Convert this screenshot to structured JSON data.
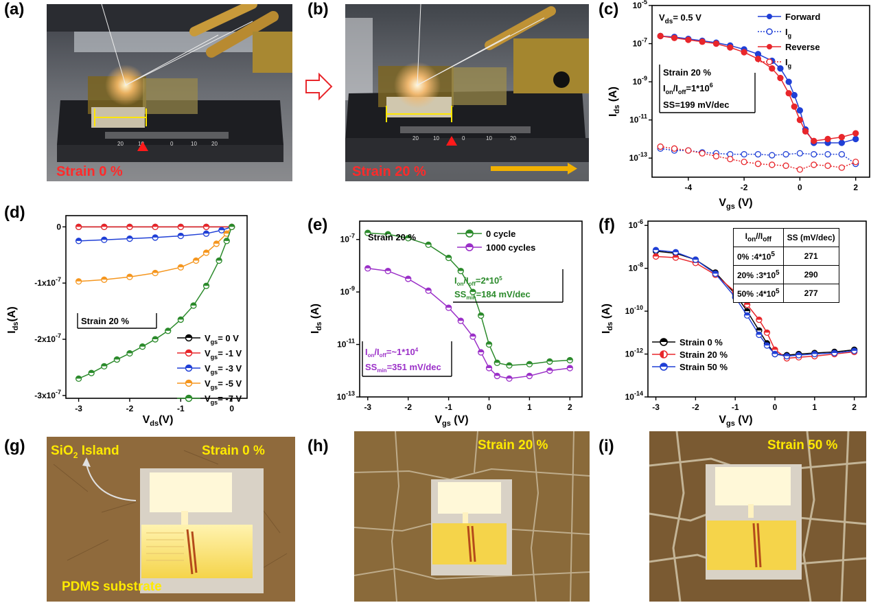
{
  "labels": {
    "a": "(a)",
    "b": "(b)",
    "c": "(c)",
    "d": "(d)",
    "e": "(e)",
    "f": "(f)",
    "g": "(g)",
    "h": "(h)",
    "i": "(i)"
  },
  "photos": {
    "a": {
      "strain_text": "Strain 0 %",
      "ruler": [
        "20",
        "10",
        "0",
        "10",
        "20"
      ]
    },
    "b": {
      "strain_text": "Strain 20 %",
      "ruler": [
        "20",
        "10",
        "0",
        "10",
        "20"
      ]
    },
    "g": {
      "strain_text": "Strain 0 %",
      "island_text": "SiO",
      "island_sub": "2",
      "island_rest": " Island",
      "substrate_text": "PDMS substrate"
    },
    "h": {
      "strain_text": "Strain 20 %"
    },
    "i": {
      "strain_text": "Strain 50 %"
    }
  },
  "colors": {
    "red": "#e8262b",
    "blue": "#1f3fd6",
    "black": "#000000",
    "orange": "#f5961e",
    "green": "#2b8a2b",
    "purple": "#9b30c8",
    "yellow": "#ffe600"
  },
  "chart_data": [
    {
      "id": "c",
      "type": "scatter",
      "xlabel": "V",
      "xlabel_sub": "gs",
      "xlabel_unit": " (V)",
      "ylabel": "I",
      "ylabel_sub": "ds",
      "ylabel_unit": " (A)",
      "xlim": [
        -5.3,
        2.5
      ],
      "xticks": [
        -4,
        -2,
        0,
        2
      ],
      "ylog": true,
      "ylim_exp": [
        -14,
        -5
      ],
      "yticks": [
        {
          "base": "10",
          "exp": "-5"
        },
        {
          "base": "10",
          "exp": "-7"
        },
        {
          "base": "10",
          "exp": "-9"
        },
        {
          "base": "10",
          "exp": "-11"
        },
        {
          "base": "10",
          "exp": "-13"
        }
      ],
      "ytick_exps": [
        -5,
        -7,
        -9,
        -11,
        -13
      ],
      "annotation_top": {
        "main": "V",
        "sub": "ds",
        "rest": "= 0.5 V"
      },
      "box_lines": [
        "Strain 20 %",
        "I_on/I_off=1*10^6",
        "SS=199 mV/dec"
      ],
      "box_line1": "Strain 20 %",
      "box_line2a": "I",
      "box_line2b": "on",
      "box_line2c": "/I",
      "box_line2d": "off",
      "box_line2e": "=1*10",
      "box_line2f": "6",
      "box_line3": "SS=199 mV/dec",
      "legend": [
        {
          "name": "Forward",
          "sub": ""
        },
        {
          "name": "I",
          "sub": "g"
        },
        {
          "name": "Reverse",
          "sub": ""
        },
        {
          "name": "I",
          "sub": "g"
        }
      ],
      "series": [
        {
          "name": "Forward",
          "color": "blue",
          "style": "solid",
          "x": [
            -5,
            -4.5,
            -4,
            -3.5,
            -3,
            -2.5,
            -2,
            -1.5,
            -1,
            -0.7,
            -0.4,
            -0.2,
            0,
            0.2,
            0.5,
            1,
            1.5,
            2
          ],
          "y_exp": [
            -6.6,
            -6.65,
            -6.75,
            -6.85,
            -6.95,
            -7.1,
            -7.3,
            -7.55,
            -7.9,
            -8.3,
            -9.0,
            -9.7,
            -10.5,
            -11.5,
            -12.2,
            -12.2,
            -12.2,
            -12.0
          ]
        },
        {
          "name": "I_g forward",
          "color": "blue",
          "style": "dotted",
          "x": [
            -5,
            -4.5,
            -4,
            -3.5,
            -3,
            -2.5,
            -2,
            -1.5,
            -1,
            -0.5,
            0,
            0.5,
            1,
            1.5,
            2
          ],
          "y_exp": [
            -12.5,
            -12.6,
            -12.6,
            -12.7,
            -12.75,
            -12.8,
            -12.8,
            -12.8,
            -12.85,
            -12.8,
            -12.75,
            -12.8,
            -12.8,
            -12.8,
            -13.3
          ]
        },
        {
          "name": "Reverse",
          "color": "red",
          "style": "solid",
          "x": [
            -5,
            -4.5,
            -4,
            -3.5,
            -3,
            -2.5,
            -2,
            -1.5,
            -1,
            -0.7,
            -0.4,
            -0.2,
            0,
            0.2,
            0.5,
            1,
            1.5,
            2
          ],
          "y_exp": [
            -6.6,
            -6.7,
            -6.8,
            -6.9,
            -7.0,
            -7.2,
            -7.45,
            -7.8,
            -8.3,
            -8.8,
            -9.6,
            -10.3,
            -11.0,
            -11.6,
            -12.1,
            -12.0,
            -11.9,
            -11.7
          ]
        },
        {
          "name": "I_g reverse",
          "color": "red",
          "style": "dotted",
          "x": [
            -5,
            -4.5,
            -4,
            -3.5,
            -3,
            -2.5,
            -2,
            -1.5,
            -1,
            -0.5,
            0,
            0.5,
            1,
            1.5,
            2
          ],
          "y_exp": [
            -12.4,
            -12.5,
            -12.6,
            -12.75,
            -12.9,
            -13.05,
            -13.2,
            -13.3,
            -13.35,
            -13.4,
            -13.6,
            -13.35,
            -13.4,
            -13.5,
            -13.2
          ]
        }
      ]
    },
    {
      "id": "d",
      "type": "line",
      "xlabel": "V",
      "xlabel_sub": "ds",
      "xlabel_unit": "(V)",
      "ylabel": "I",
      "ylabel_sub": "ds",
      "ylabel_unit": "(A)",
      "xlim": [
        -3.25,
        0.3
      ],
      "xticks": [
        -3,
        -2,
        -1,
        0
      ],
      "ylim": [
        -3.05e-07,
        2e-08
      ],
      "yticks": [
        {
          "value": 0,
          "label": "0"
        },
        {
          "value": -1e-07,
          "label": "-1x10",
          "exp": "-7"
        },
        {
          "value": -2e-07,
          "label": "-2x10",
          "exp": "-7"
        },
        {
          "value": -3e-07,
          "label": "-3x10",
          "exp": "-7"
        }
      ],
      "box_text": "Strain 20 %",
      "legend": [
        {
          "name": "V",
          "sub": "gs",
          "rest": "= 0 V"
        },
        {
          "name": "V",
          "sub": "gs",
          "rest": "= -1 V"
        },
        {
          "name": "V",
          "sub": "gs",
          "rest": "= -3 V"
        },
        {
          "name": "V",
          "sub": "gs",
          "rest": "= -5 V"
        },
        {
          "name": "V",
          "sub": "gs",
          "rest": "= -7 V"
        }
      ],
      "series": [
        {
          "name": "Vgs = 0 V",
          "color": "black",
          "x": [
            -3,
            -2.5,
            -2,
            -1.5,
            -1,
            -0.5,
            0
          ],
          "y": [
            0,
            0,
            0,
            0,
            0,
            0,
            0
          ]
        },
        {
          "name": "Vgs = -1 V",
          "color": "red",
          "x": [
            -3,
            -2.5,
            -2,
            -1.5,
            -1,
            -0.5,
            0
          ],
          "y": [
            0,
            0,
            0,
            0,
            0,
            0,
            0
          ]
        },
        {
          "name": "Vgs = -3 V",
          "color": "blue",
          "x": [
            -3,
            -2.5,
            -2,
            -1.5,
            -1,
            -0.5,
            -0.2,
            0
          ],
          "y": [
            -2.5e-08,
            -2.3e-08,
            -2.1e-08,
            -1.9e-08,
            -1.6e-08,
            -1.2e-08,
            -6e-09,
            0
          ]
        },
        {
          "name": "Vgs = -5 V",
          "color": "orange",
          "x": [
            -3,
            -2.5,
            -2,
            -1.5,
            -1,
            -0.7,
            -0.5,
            -0.3,
            -0.1,
            0
          ],
          "y": [
            -9.7e-08,
            -9.4e-08,
            -8.9e-08,
            -8.2e-08,
            -7.2e-08,
            -6e-08,
            -4.6e-08,
            -3e-08,
            -1.2e-08,
            0
          ]
        },
        {
          "name": "Vgs = -7 V",
          "color": "green",
          "x": [
            -3,
            -2.75,
            -2.5,
            -2.25,
            -2,
            -1.75,
            -1.5,
            -1.25,
            -1,
            -0.75,
            -0.5,
            -0.25,
            -0.1,
            0
          ],
          "y": [
            -2.7e-07,
            -2.6e-07,
            -2.48e-07,
            -2.36e-07,
            -2.25e-07,
            -2.13e-07,
            -2e-07,
            -1.85e-07,
            -1.65e-07,
            -1.4e-07,
            -1.05e-07,
            -6e-08,
            -2.5e-08,
            0
          ]
        }
      ]
    },
    {
      "id": "e",
      "type": "scatter",
      "xlabel": "V",
      "xlabel_sub": "gs",
      "xlabel_unit": " (V)",
      "ylabel": "I",
      "ylabel_sub": "ds",
      "ylabel_unit": " (A)",
      "xlim": [
        -3.2,
        2.3
      ],
      "xticks": [
        -3,
        -2,
        -1,
        0,
        1,
        2
      ],
      "ylog": true,
      "ylim_exp": [
        -13,
        -6.3
      ],
      "yticks": [
        {
          "base": "10",
          "exp": "-7"
        },
        {
          "base": "10",
          "exp": "-9"
        },
        {
          "base": "10",
          "exp": "-11"
        },
        {
          "base": "10",
          "exp": "-13"
        }
      ],
      "ytick_exps": [
        -7,
        -9,
        -11,
        -13
      ],
      "title": "Strain 20 %",
      "box1": {
        "a": "I",
        "b": "on",
        "c": "/I",
        "d": "off",
        "e": "=2*10",
        "f": "5",
        "g": "SS",
        "h": "min",
        "i": "=184 mV/dec"
      },
      "box2": {
        "a": "I",
        "b": "on",
        "c": "/I",
        "d": "off",
        "e": "=~1*10",
        "f": "4",
        "g": "SS",
        "h": "min",
        "i": "=351 mV/dec"
      },
      "legend": [
        {
          "name": "0 cycle"
        },
        {
          "name": "1000 cycles"
        }
      ],
      "series": [
        {
          "name": "0 cycle",
          "color": "green",
          "x": [
            -3,
            -2.5,
            -2,
            -1.5,
            -1,
            -0.7,
            -0.4,
            -0.2,
            0,
            0.2,
            0.5,
            1,
            1.5,
            2
          ],
          "y_exp": [
            -6.75,
            -6.8,
            -6.95,
            -7.2,
            -7.7,
            -8.2,
            -9.0,
            -9.9,
            -11.0,
            -11.7,
            -11.8,
            -11.75,
            -11.65,
            -11.6
          ]
        },
        {
          "name": "1000 cycles",
          "color": "purple",
          "x": [
            -3,
            -2.5,
            -2,
            -1.5,
            -1,
            -0.7,
            -0.4,
            -0.2,
            0,
            0.2,
            0.5,
            1,
            1.5,
            2
          ],
          "y_exp": [
            -8.1,
            -8.2,
            -8.5,
            -8.95,
            -9.6,
            -10.1,
            -10.7,
            -11.3,
            -11.9,
            -12.2,
            -12.3,
            -12.2,
            -12.0,
            -11.9
          ]
        }
      ]
    },
    {
      "id": "f",
      "type": "scatter",
      "xlabel": "V",
      "xlabel_sub": "gs",
      "xlabel_unit": " (V)",
      "ylabel": "I",
      "ylabel_sub": "ds",
      "ylabel_unit": " (A)",
      "xlim": [
        -3.2,
        2.3
      ],
      "xticks": [
        -3,
        -2,
        -1,
        0,
        1,
        2
      ],
      "ylog": true,
      "ylim_exp": [
        -14,
        -5.8
      ],
      "yticks": [
        {
          "base": "10",
          "exp": "-6"
        },
        {
          "base": "10",
          "exp": "-8"
        },
        {
          "base": "10",
          "exp": "-10"
        },
        {
          "base": "10",
          "exp": "-12"
        },
        {
          "base": "10",
          "exp": "-14"
        }
      ],
      "ytick_exps": [
        -6,
        -8,
        -10,
        -12,
        -14
      ],
      "table": {
        "h1a": "I",
        "h1b": "on",
        "h1c": "/I",
        "h1d": "off",
        "h2": "SS (mV/dec)",
        "rows": [
          {
            "a": "0% :4*10",
            "b": "5",
            "ss": "271"
          },
          {
            "a": "20% :3*10",
            "b": "5",
            "ss": "290"
          },
          {
            "a": "50% :4*10",
            "b": "5",
            "ss": "277"
          }
        ]
      },
      "legend": [
        {
          "name": "Strain 0 %"
        },
        {
          "name": "Strain 20 %"
        },
        {
          "name": "Strain 50 %"
        }
      ],
      "series": [
        {
          "name": "Strain 0 %",
          "color": "black",
          "x": [
            -3,
            -2.5,
            -2,
            -1.5,
            -1,
            -0.7,
            -0.4,
            -0.2,
            0,
            0.3,
            0.6,
            1,
            1.5,
            2
          ],
          "y_exp": [
            -7.2,
            -7.3,
            -7.6,
            -8.2,
            -9.2,
            -10.0,
            -10.9,
            -11.5,
            -12.0,
            -12.05,
            -12.0,
            -11.95,
            -11.9,
            -11.8
          ]
        },
        {
          "name": "Strain 20 %",
          "color": "red",
          "x": [
            -3,
            -2.5,
            -2,
            -1.5,
            -1,
            -0.7,
            -0.4,
            -0.2,
            0,
            0.3,
            0.6,
            1,
            1.5,
            2
          ],
          "y_exp": [
            -7.45,
            -7.5,
            -7.75,
            -8.3,
            -9.1,
            -9.7,
            -10.4,
            -11.0,
            -11.8,
            -12.2,
            -12.15,
            -12.1,
            -12.0,
            -11.9
          ]
        },
        {
          "name": "Strain 50 %",
          "color": "blue",
          "x": [
            -3,
            -2.5,
            -2,
            -1.5,
            -1,
            -0.7,
            -0.4,
            -0.2,
            0,
            0.3,
            0.6,
            1,
            1.5,
            2
          ],
          "y_exp": [
            -7.15,
            -7.25,
            -7.6,
            -8.25,
            -9.35,
            -10.2,
            -11.1,
            -11.6,
            -12.0,
            -12.1,
            -12.05,
            -12.0,
            -11.95,
            -11.85
          ]
        }
      ]
    }
  ]
}
